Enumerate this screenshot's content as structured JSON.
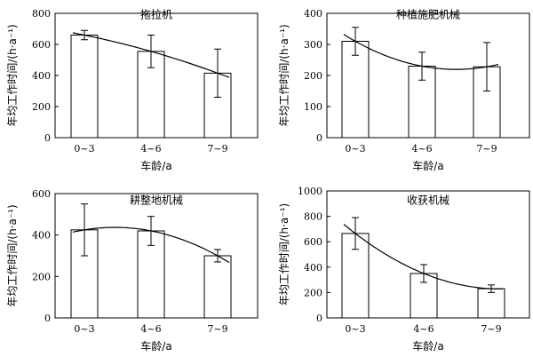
{
  "chart_data": [
    {
      "type": "bar",
      "title": "拖拉机",
      "xlabel": "车龄/a",
      "ylabel": "年均工作时间/(h·a⁻¹)",
      "categories": [
        "0~3",
        "4~6",
        "7~9"
      ],
      "values": [
        660,
        555,
        415
      ],
      "errors": [
        30,
        105,
        155
      ],
      "ylim": [
        0,
        800
      ],
      "yticks": [
        0,
        200,
        400,
        600,
        800
      ],
      "trend": true,
      "legend": "none"
    },
    {
      "type": "bar",
      "title": "种植施肥机械",
      "xlabel": "车龄/a",
      "ylabel": "年均工作时间/(h·a⁻¹)",
      "categories": [
        "0~3",
        "4~6",
        "7~9"
      ],
      "values": [
        310,
        230,
        228
      ],
      "errors": [
        45,
        45,
        78
      ],
      "ylim": [
        0,
        400
      ],
      "yticks": [
        0,
        100,
        200,
        300,
        400
      ],
      "trend": true,
      "legend": "none"
    },
    {
      "type": "bar",
      "title": "耕整地机械",
      "xlabel": "车龄/a",
      "ylabel": "年均工作时间/(h·a⁻¹)",
      "categories": [
        "0~3",
        "4~6",
        "7~9"
      ],
      "values": [
        425,
        420,
        300
      ],
      "errors": [
        125,
        70,
        30
      ],
      "ylim": [
        0,
        600
      ],
      "yticks": [
        0,
        200,
        400,
        600
      ],
      "trend": true,
      "legend": "none"
    },
    {
      "type": "bar",
      "title": "收获机械",
      "xlabel": "车龄/a",
      "ylabel": "年均工作时间/(h·a⁻¹)",
      "categories": [
        "0~3",
        "4~6",
        "7~9"
      ],
      "values": [
        665,
        350,
        230
      ],
      "errors": [
        125,
        70,
        30
      ],
      "ylim": [
        0,
        1000
      ],
      "yticks": [
        0,
        200,
        400,
        600,
        800,
        1000
      ],
      "trend": true,
      "legend": "none"
    }
  ]
}
